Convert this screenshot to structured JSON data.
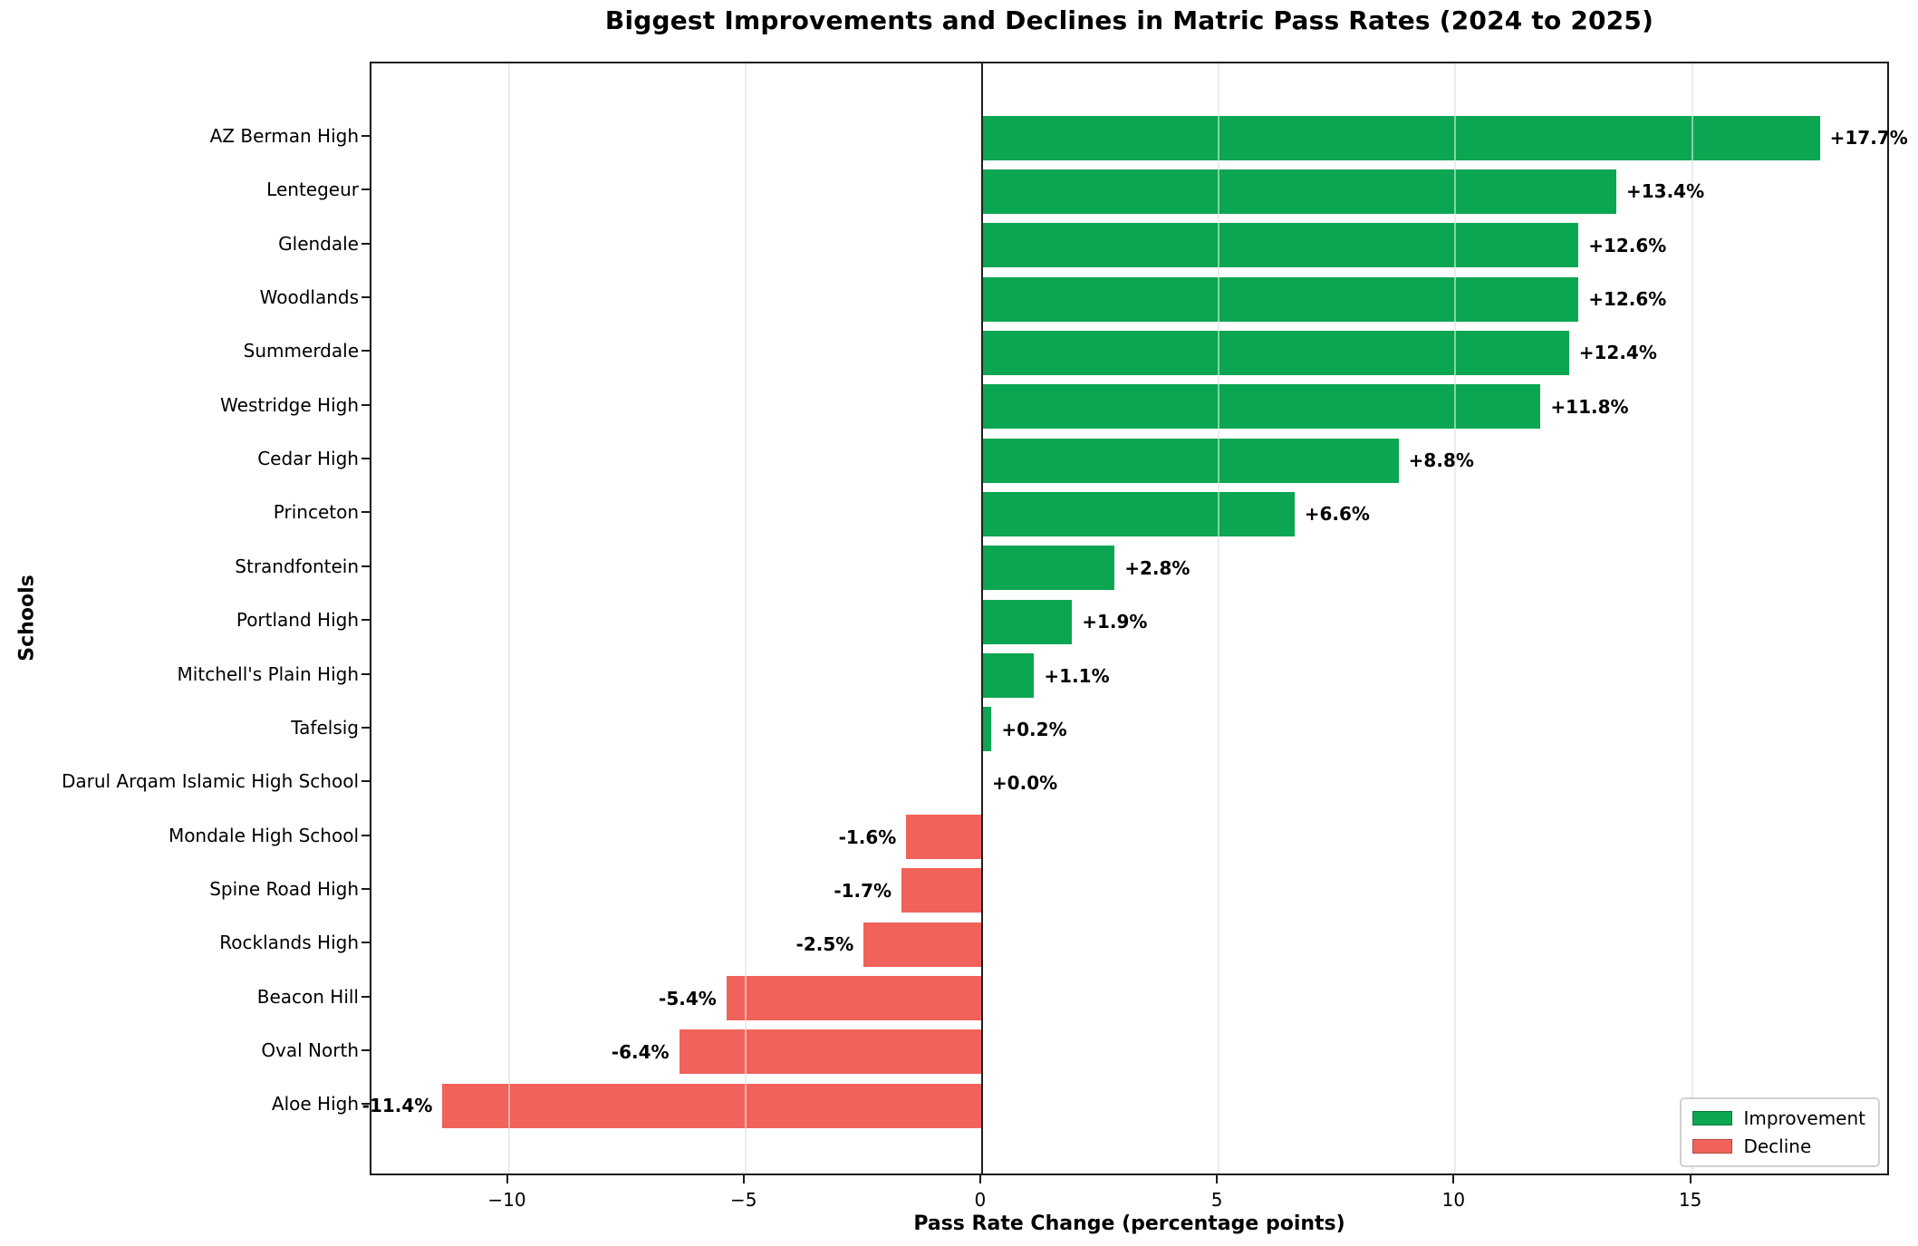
{
  "chart_data": {
    "type": "bar",
    "orientation": "horizontal",
    "title": "Biggest Improvements and Declines in Matric Pass Rates (2024 to 2025)",
    "xlabel": "Pass Rate Change (percentage points)",
    "ylabel": "Schools",
    "categories": [
      "AZ Berman High",
      "Lentegeur",
      "Glendale",
      "Woodlands",
      "Summerdale",
      "Westridge High",
      "Cedar High",
      "Princeton",
      "Strandfontein",
      "Portland High",
      "Mitchell's Plain High",
      "Tafelsig",
      "Darul Arqam Islamic High School",
      "Mondale High School",
      "Spine Road High",
      "Rocklands High",
      "Beacon Hill",
      "Oval North",
      "Aloe High"
    ],
    "values": [
      17.7,
      13.4,
      12.6,
      12.6,
      12.4,
      11.8,
      8.8,
      6.6,
      2.8,
      1.9,
      1.1,
      0.2,
      0.0,
      -1.6,
      -1.7,
      -2.5,
      -5.4,
      -6.4,
      -11.4
    ],
    "value_labels": [
      "+17.7%",
      "+13.4%",
      "+12.6%",
      "+12.6%",
      "+12.4%",
      "+11.8%",
      "+8.8%",
      "+6.6%",
      "+2.8%",
      "+1.9%",
      "+1.1%",
      "+0.2%",
      "+0.0%",
      "-1.6%",
      "-1.7%",
      "-2.5%",
      "-5.4%",
      "-6.4%",
      "-11.4%"
    ],
    "xticks": [
      -10,
      -5,
      0,
      5,
      10,
      15
    ],
    "xtick_labels": [
      "−10",
      "−5",
      "0",
      "5",
      "10",
      "15"
    ],
    "xlim": [
      -12.9,
      19.2
    ],
    "grid": true,
    "zero_line": true,
    "legend": {
      "position": "lower right",
      "entries": [
        {
          "label": "Improvement",
          "color": "#0aa651"
        },
        {
          "label": "Decline",
          "color": "#f0625a"
        }
      ]
    },
    "colors": {
      "improvement": "#0aa651",
      "decline": "#f0625a",
      "gridline": "#d9d9d9",
      "zero_line": "#1f1f1f",
      "text": "#000000"
    }
  }
}
